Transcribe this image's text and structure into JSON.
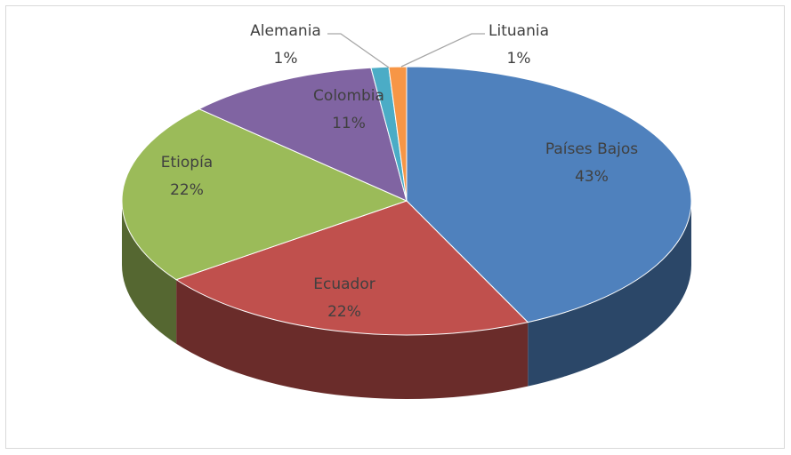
{
  "chart_data": {
    "type": "pie",
    "categories": [
      "Países Bajos",
      "Ecuador",
      "Etiopía",
      "Colombia",
      "Alemania",
      "Lituania"
    ],
    "values": [
      43,
      22,
      22,
      11,
      1,
      1
    ],
    "value_labels": [
      "43%",
      "22%",
      "22%",
      "11%",
      "1%",
      "1%"
    ],
    "colors": [
      "#4f81bd",
      "#c0504d",
      "#9bbb59",
      "#8064a2",
      "#4bacc6",
      "#f79646"
    ]
  }
}
